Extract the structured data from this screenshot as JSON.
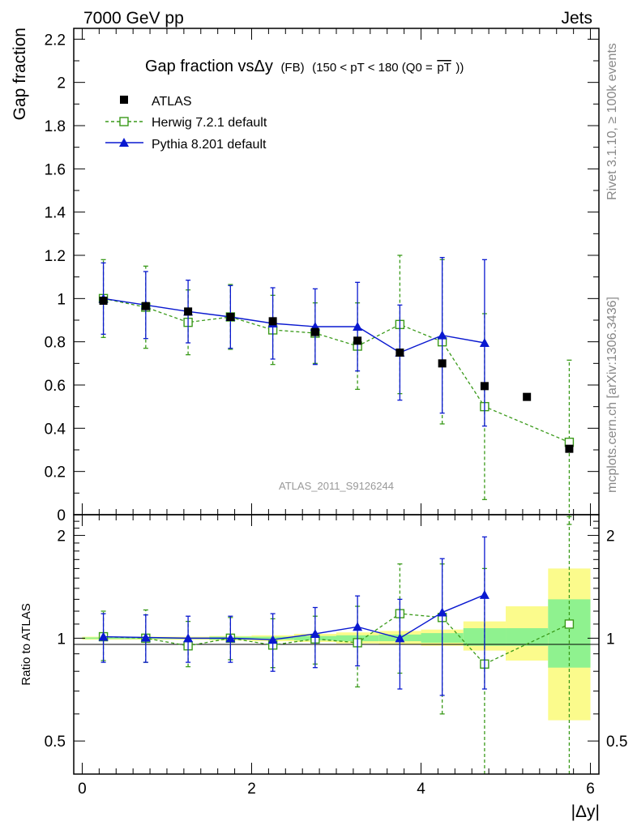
{
  "header": {
    "energy_label": "7000 GeV pp",
    "process_label": "Jets",
    "rivet_label": "Rivet 3.1.10, ≥ 100k events",
    "mcplots_label": "mcplots.cern.ch [arXiv:1306.3436]",
    "analysis_label": "ATLAS_2011_S9126244"
  },
  "colors": {
    "atlas": "#000000",
    "herwig": "#3a9a1a",
    "pythia": "#0a19d0",
    "band_inner": "#8ff28f",
    "band_outer": "#fbfb8c"
  },
  "chart_data": [
    {
      "type": "scatter",
      "title_main": "Gap fraction vsΔy",
      "title_small": "(FB)",
      "title_cut": "(150 < pT < 180 (Q0 =",
      "title_q0": "pT",
      "title_close": "))",
      "ylabel": "Gap fraction",
      "ylim": [
        0,
        2.25
      ],
      "xlim": [
        -0.1,
        6.1
      ],
      "yticks": [
        "0",
        "0.2",
        "0.4",
        "0.6",
        "0.8",
        "1",
        "1.2",
        "1.4",
        "1.6",
        "1.8",
        "2",
        "2.2"
      ],
      "legend_position": "top-left",
      "legend": [
        "ATLAS",
        "Herwig 7.2.1 default",
        "Pythia 8.201 default"
      ],
      "series": [
        {
          "name": "ATLAS",
          "x": [
            0.25,
            0.75,
            1.25,
            1.75,
            2.25,
            2.75,
            3.25,
            3.75,
            4.25,
            4.75,
            5.25,
            5.75
          ],
          "y": [
            0.99,
            0.965,
            0.94,
            0.915,
            0.895,
            0.845,
            0.805,
            0.75,
            0.7,
            0.595,
            0.545,
            0.305
          ]
        },
        {
          "name": "Herwig 7.2.1 default",
          "x": [
            0.25,
            0.75,
            1.25,
            1.75,
            2.25,
            2.75,
            3.25,
            3.75,
            4.25,
            4.75,
            5.75
          ],
          "y": [
            1.0,
            0.96,
            0.89,
            0.915,
            0.855,
            0.84,
            0.78,
            0.88,
            0.8,
            0.5,
            0.335
          ],
          "err": [
            0.18,
            0.19,
            0.15,
            0.15,
            0.16,
            0.14,
            0.2,
            0.32,
            0.38,
            0.43,
            0.38
          ]
        },
        {
          "name": "Pythia 8.201 default",
          "x": [
            0.25,
            0.75,
            1.25,
            1.75,
            2.25,
            2.75,
            3.25,
            3.75,
            4.25,
            4.75
          ],
          "y": [
            1.0,
            0.97,
            0.94,
            0.915,
            0.885,
            0.87,
            0.87,
            0.75,
            0.83,
            0.795
          ],
          "err": [
            0.165,
            0.155,
            0.145,
            0.145,
            0.165,
            0.175,
            0.205,
            0.22,
            0.36,
            0.385
          ]
        }
      ]
    },
    {
      "type": "scatter",
      "ylabel": "Ratio to ATLAS",
      "ylim": [
        0.4,
        2.3
      ],
      "log_y": true,
      "yticks": [
        "0.5",
        "1",
        "2"
      ],
      "xticks": [
        "0",
        "2",
        "4",
        "6"
      ],
      "xlabel": "|Δy|",
      "band_edges": [
        0,
        0.5,
        1,
        1.5,
        2,
        2.5,
        3,
        3.5,
        4,
        4.5,
        5,
        5.5,
        6
      ],
      "band_inner": [
        [
          0.995,
          1.005
        ],
        [
          0.995,
          1.005
        ],
        [
          0.995,
          1.005
        ],
        [
          0.99,
          1.01
        ],
        [
          0.99,
          1.01
        ],
        [
          0.985,
          1.015
        ],
        [
          0.98,
          1.02
        ],
        [
          0.98,
          1.025
        ],
        [
          0.97,
          1.035
        ],
        [
          0.95,
          1.07
        ],
        [
          0.95,
          1.07
        ],
        [
          0.82,
          1.3
        ]
      ],
      "band_outer": [
        [
          0.99,
          1.01
        ],
        [
          0.99,
          1.01
        ],
        [
          0.99,
          1.01
        ],
        [
          0.985,
          1.015
        ],
        [
          0.98,
          1.02
        ],
        [
          0.975,
          1.03
        ],
        [
          0.965,
          1.04
        ],
        [
          0.96,
          1.05
        ],
        [
          0.95,
          1.06
        ],
        [
          0.92,
          1.12
        ],
        [
          0.86,
          1.24
        ],
        [
          0.575,
          1.6
        ]
      ],
      "series": [
        {
          "name": "Herwig 7.2.1 default",
          "x": [
            0.25,
            0.75,
            1.25,
            1.75,
            2.25,
            2.75,
            3.25,
            3.75,
            4.25,
            4.75,
            5.75
          ],
          "y": [
            1.01,
            1.0,
            0.95,
            1.0,
            0.955,
            0.995,
            0.97,
            1.18,
            1.15,
            0.84,
            1.1
          ],
          "lo": [
            0.86,
            0.85,
            0.825,
            0.865,
            0.82,
            0.84,
            0.72,
            0.79,
            0.6,
            0.29,
            0.29
          ],
          "hi": [
            1.2,
            1.21,
            1.12,
            1.15,
            1.14,
            1.16,
            1.24,
            1.65,
            1.65,
            1.6,
            2.27
          ]
        },
        {
          "name": "Pythia 8.201 default",
          "x": [
            0.25,
            0.75,
            1.25,
            1.75,
            2.25,
            2.75,
            3.25,
            3.75,
            4.25,
            4.75
          ],
          "y": [
            1.01,
            1.005,
            1.0,
            1.0,
            0.99,
            1.03,
            1.08,
            1.0,
            1.19,
            1.34
          ],
          "lo": [
            0.85,
            0.85,
            0.85,
            0.85,
            0.8,
            0.82,
            0.83,
            0.71,
            0.68,
            0.71
          ],
          "hi": [
            1.18,
            1.17,
            1.16,
            1.16,
            1.18,
            1.23,
            1.33,
            1.3,
            1.71,
            1.98
          ]
        }
      ]
    }
  ]
}
